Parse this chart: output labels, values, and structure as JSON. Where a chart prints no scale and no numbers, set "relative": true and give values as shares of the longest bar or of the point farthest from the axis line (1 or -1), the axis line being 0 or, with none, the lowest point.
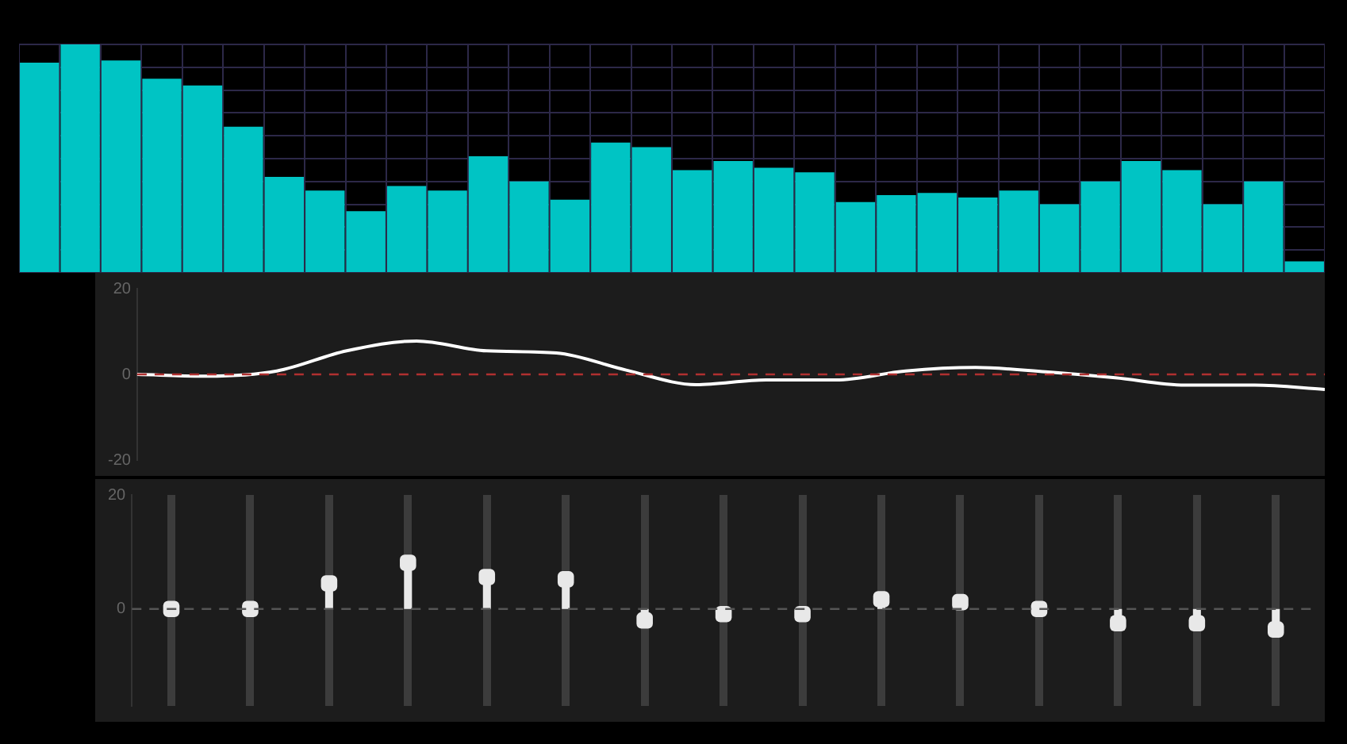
{
  "chart_data": [
    {
      "type": "bar",
      "categories": [
        null,
        null,
        null,
        null,
        null,
        null,
        null,
        null,
        null,
        null,
        null,
        null,
        null,
        null,
        null,
        null,
        null,
        null,
        null,
        null,
        null,
        null,
        null,
        null,
        null,
        null,
        null,
        null,
        null,
        null,
        null,
        null
      ],
      "values": [
        0.92,
        1,
        0.93,
        0.85,
        0.82,
        0.64,
        0.42,
        0.36,
        0.27,
        0.38,
        0.36,
        0.51,
        0.4,
        0.32,
        0.57,
        0.55,
        0.45,
        0.49,
        0.46,
        0.44,
        0.31,
        0.34,
        0.35,
        0.33,
        0.36,
        0.3,
        0.4,
        0.49,
        0.45,
        0.3,
        0.4,
        0.05
      ],
      "color": "#00c4c4",
      "relative": true,
      "grid": true
    },
    {
      "type": "line",
      "categories": [
        null,
        null,
        null,
        null,
        null,
        null,
        null,
        null,
        null,
        null,
        null,
        null,
        null,
        null,
        null,
        null,
        null,
        null
      ],
      "values": [
        0,
        -0.4,
        0.8,
        5.5,
        7.8,
        5.5,
        5,
        1,
        -2.4,
        -1.3,
        -1.3,
        0.8,
        1.6,
        0.6,
        -0.8,
        -2.5,
        -2.5,
        -3.5
      ],
      "color": "#ffffff",
      "ylim": [
        -20,
        20
      ],
      "yticks": [
        -20,
        0,
        20
      ],
      "ref_lines": [
        {
          "axis": "y",
          "value": 0,
          "color": "#b03030",
          "line_style": "dashed"
        }
      ]
    },
    {
      "type": "lollipop",
      "categories": [
        null,
        null,
        null,
        null,
        null,
        null,
        null,
        null,
        null,
        null,
        null,
        null,
        null,
        null,
        null
      ],
      "values": [
        0,
        0,
        4.5,
        8.1,
        5.6,
        5.2,
        -2,
        -0.9,
        -0.9,
        1.7,
        1.2,
        0,
        -2.5,
        -2.5,
        -3.6
      ],
      "color": "#e8e8e8",
      "ylim": [
        -17,
        20
      ],
      "yticks": [
        0,
        20
      ],
      "grid": "x",
      "ref_lines": [
        {
          "axis": "y",
          "value": 0,
          "color": "#555555",
          "line_style": "dashed"
        }
      ]
    }
  ]
}
